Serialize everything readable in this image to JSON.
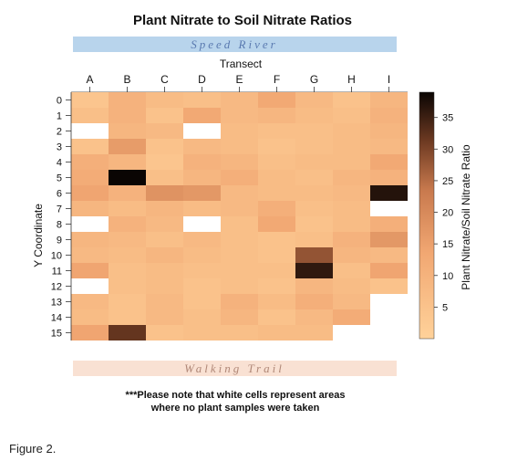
{
  "caption": "Figure 2.",
  "chart_data": {
    "type": "heatmap",
    "title": "Plant Nitrate to Soil Nitrate Ratios",
    "top_banner": "Speed River",
    "bottom_banner": "Walking Trail",
    "xlabel": "Transect",
    "ylabel": "Y Coordinate",
    "colorbar_label": "Plant Nitrate/Soil Nitrate Ratio",
    "colorbar_range": [
      0,
      39
    ],
    "colorbar_ticks": [
      "5",
      "10",
      "15",
      "20",
      "25",
      "30",
      "35"
    ],
    "x_categories": [
      "A",
      "B",
      "C",
      "D",
      "E",
      "F",
      "G",
      "H",
      "I"
    ],
    "y_categories": [
      "0",
      "1",
      "2",
      "3",
      "4",
      "5",
      "6",
      "7",
      "8",
      "9",
      "10",
      "11",
      "12",
      "13",
      "14",
      "15"
    ],
    "note_lines": [
      "***Please note that white cells represent areas",
      "where no plant samples were taken"
    ],
    "values": [
      [
        4,
        10,
        7,
        6,
        8,
        13,
        8,
        5,
        9
      ],
      [
        6,
        10,
        5,
        13,
        8,
        9,
        7,
        6,
        10
      ],
      [
        null,
        9,
        8,
        null,
        7,
        6,
        6,
        7,
        9
      ],
      [
        5,
        16,
        5,
        8,
        7,
        5,
        6,
        7,
        8
      ],
      [
        11,
        9,
        4,
        10,
        9,
        6,
        7,
        7,
        13
      ],
      [
        12,
        39,
        6,
        9,
        11,
        7,
        6,
        9,
        10
      ],
      [
        14,
        10,
        18,
        17,
        8,
        7,
        7,
        8,
        37
      ],
      [
        9,
        7,
        9,
        7,
        8,
        11,
        6,
        7,
        null
      ],
      [
        null,
        10,
        8,
        null,
        6,
        13,
        5,
        7,
        11
      ],
      [
        9,
        8,
        6,
        8,
        6,
        5,
        6,
        10,
        17
      ],
      [
        8,
        7,
        9,
        7,
        6,
        5,
        28,
        9,
        8
      ],
      [
        14,
        6,
        7,
        6,
        6,
        6,
        36,
        6,
        14
      ],
      [
        null,
        6,
        7,
        5,
        6,
        5,
        9,
        7,
        5
      ],
      [
        8,
        5,
        8,
        5,
        10,
        7,
        11,
        8,
        null
      ],
      [
        7,
        5,
        8,
        6,
        9,
        5,
        8,
        12,
        null
      ],
      [
        14,
        32,
        5,
        6,
        6,
        7,
        7,
        null,
        null
      ]
    ],
    "cell_missing_color": "#ffffff",
    "colors": {
      "low": "#ffd29a",
      "mid": "#e3885a",
      "high": "#0a0503",
      "top_banner_bg": "#b8d4ec",
      "top_banner_text": "#5a7ab0",
      "bottom_banner_bg": "#f9e1d3",
      "bottom_banner_text": "#b08878"
    }
  }
}
